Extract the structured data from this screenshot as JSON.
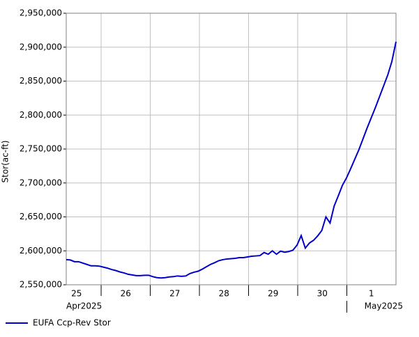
{
  "chart_data": {
    "type": "line",
    "y_label": "Stor(ac-ft)",
    "x_day_labels": [
      "25",
      "26",
      "27",
      "28",
      "29",
      "30",
      "1"
    ],
    "x_period_labels": [
      "Apr2025",
      "May2025"
    ],
    "ylim": [
      2550000,
      2950000
    ],
    "yticks": [
      {
        "value": 2550000,
        "label": "2,550,000"
      },
      {
        "value": 2600000,
        "label": "2,600,000"
      },
      {
        "value": 2650000,
        "label": "2,650,000"
      },
      {
        "value": 2700000,
        "label": "2,700,000"
      },
      {
        "value": 2750000,
        "label": "2,750,000"
      },
      {
        "value": 2800000,
        "label": "2,800,000"
      },
      {
        "value": 2850000,
        "label": "2,850,000"
      },
      {
        "value": 2900000,
        "label": "2,900,000"
      },
      {
        "value": 2950000,
        "label": "2,950,000"
      }
    ],
    "grid": true,
    "legend": "bottom-left",
    "series": [
      {
        "name": "EUFA Ccp-Rev Stor",
        "color": "#0000cc",
        "values": [
          2587000,
          2586500,
          2584000,
          2584000,
          2582000,
          2580000,
          2578000,
          2578000,
          2577500,
          2576000,
          2574500,
          2572500,
          2571000,
          2569000,
          2567500,
          2565500,
          2564500,
          2563500,
          2563500,
          2564000,
          2564000,
          2562000,
          2560500,
          2560000,
          2560500,
          2561500,
          2562000,
          2563000,
          2562500,
          2563000,
          2566500,
          2568500,
          2570000,
          2573000,
          2576500,
          2580000,
          2582500,
          2585500,
          2587000,
          2588000,
          2588500,
          2589000,
          2590000,
          2590000,
          2591000,
          2592000,
          2592500,
          2593000,
          2597500,
          2595000,
          2600000,
          2595000,
          2599500,
          2598000,
          2599000,
          2601000,
          2608500,
          2622500,
          2604000,
          2611500,
          2615500,
          2622000,
          2630000,
          2650000,
          2641000,
          2666000,
          2681000,
          2696500,
          2707500,
          2721000,
          2735000,
          2749000,
          2765000,
          2781000,
          2796000,
          2811000,
          2827000,
          2843000,
          2859000,
          2879000,
          2908000
        ]
      }
    ]
  }
}
